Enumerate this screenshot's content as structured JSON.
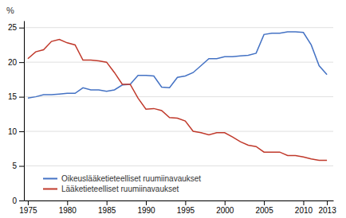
{
  "chart_data": {
    "type": "line",
    "ylabel": "%",
    "x": [
      1975,
      1976,
      1977,
      1978,
      1979,
      1980,
      1981,
      1982,
      1983,
      1984,
      1985,
      1986,
      1987,
      1988,
      1989,
      1990,
      1991,
      1992,
      1993,
      1994,
      1995,
      1996,
      1997,
      1998,
      1999,
      2000,
      2001,
      2002,
      2003,
      2004,
      2005,
      2006,
      2007,
      2008,
      2009,
      2010,
      2011,
      2012,
      2013
    ],
    "series": [
      {
        "name": "Oikeuslääketieteelliset ruumiinavaukset",
        "color": "#4472C4",
        "values": [
          14.8,
          15.0,
          15.3,
          15.3,
          15.4,
          15.5,
          15.5,
          16.3,
          16.0,
          16.0,
          15.8,
          16.0,
          16.7,
          16.8,
          18.1,
          18.1,
          18.0,
          16.4,
          16.3,
          17.8,
          18.0,
          18.5,
          19.5,
          20.5,
          20.5,
          20.8,
          20.8,
          20.9,
          21.0,
          21.3,
          24.0,
          24.2,
          24.2,
          24.4,
          24.4,
          24.3,
          22.5,
          19.5,
          18.2
        ]
      },
      {
        "name": "Lääketieteelliset ruumiinavaukset",
        "color": "#C0392B",
        "values": [
          20.5,
          21.5,
          21.8,
          23.0,
          23.3,
          22.8,
          22.5,
          20.3,
          20.3,
          20.2,
          20.0,
          18.5,
          16.8,
          16.8,
          14.8,
          13.2,
          13.3,
          13.0,
          12.0,
          11.9,
          11.5,
          10.0,
          9.8,
          9.5,
          9.8,
          9.8,
          9.2,
          8.5,
          8.0,
          7.8,
          7.0,
          7.0,
          7.0,
          6.5,
          6.5,
          6.3,
          6.0,
          5.8,
          5.8
        ]
      }
    ],
    "xlim": [
      1974.5,
      2013.8
    ],
    "xticks": [
      1975,
      1980,
      1985,
      1990,
      1995,
      2000,
      2005,
      2010,
      2013
    ],
    "ylim": [
      0,
      26
    ],
    "yticks": [
      0,
      5,
      10,
      15,
      20,
      25
    ],
    "grid": true,
    "legend": "lower left"
  }
}
